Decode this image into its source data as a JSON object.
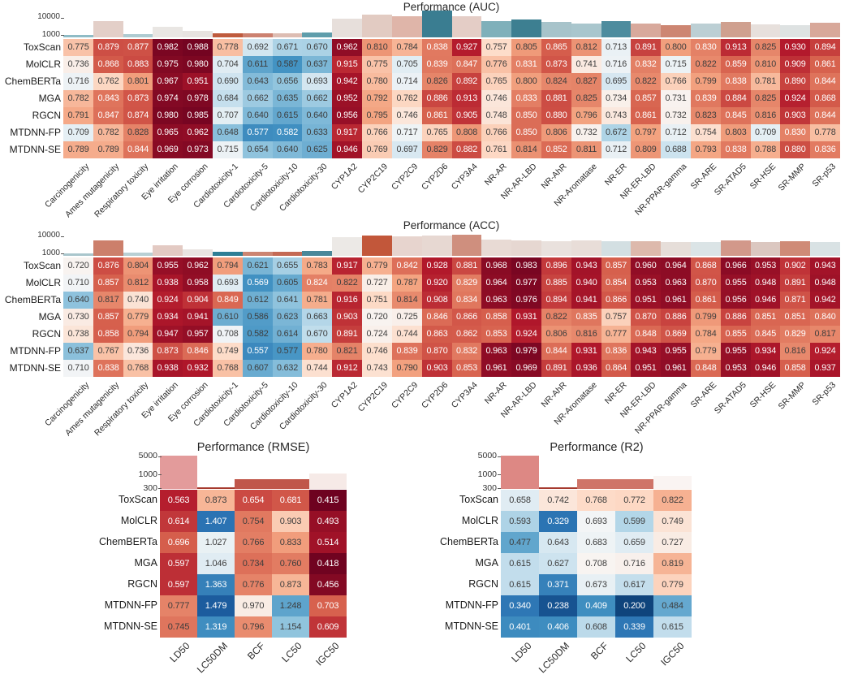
{
  "page": {
    "background": "#ffffff"
  },
  "chart_data": [
    {
      "id": "auc",
      "type": "heatmap",
      "title": "Performance (AUC)",
      "rows": [
        "ToxScan",
        "MolCLR",
        "ChemBERTa",
        "MGA",
        "RGCN",
        "MTDNN-FP",
        "MTDNN-SE"
      ],
      "columns": [
        "Carcinogenicity",
        "Ames mutagenicity",
        "Respiratory toxicity",
        "Eye irritation",
        "Eye corrosion",
        "Cardiotoxicity-1",
        "Cardiotoxicity-5",
        "Cardiotoxicity-10",
        "Cardiotoxicity-30",
        "CYP1A2",
        "CYP2C19",
        "CYP2C9",
        "CYP2D6",
        "CYP3A4",
        "NR-AR",
        "NR-AR-LBD",
        "NR-AhR",
        "NR-Aromatase",
        "NR-ER",
        "NR-ER-LBD",
        "NR-PPAR-gamma",
        "SR-ARE",
        "SR-ATAD5",
        "SR-HSE",
        "SR-MMP",
        "SR-p53"
      ],
      "values": [
        [
          "0.775",
          "0.879",
          "0.877",
          "0.982",
          "0.988",
          "0.778",
          "0.692",
          "0.671",
          "0.670",
          "0.962",
          "0.810",
          "0.784",
          "0.838",
          "0.927",
          "0.757",
          "0.805",
          "0.865",
          "0.812",
          "0.713",
          "0.891",
          "0.800",
          "0.830",
          "0.913",
          "0.825",
          "0.930",
          "0.894"
        ],
        [
          "0.736",
          "0.868",
          "0.883",
          "0.975",
          "0.980",
          "0.704",
          "0.611",
          "0.587",
          "0.637",
          "0.915",
          "0.775",
          "0.705",
          "0.839",
          "0.847",
          "0.776",
          "0.831",
          "0.873",
          "0.741",
          "0.716",
          "0.832",
          "0.715",
          "0.822",
          "0.859",
          "0.810",
          "0.909",
          "0.861"
        ],
        [
          "0.716",
          "0.762",
          "0.801",
          "0.967",
          "0.951",
          "0.690",
          "0.643",
          "0.656",
          "0.693",
          "0.942",
          "0.780",
          "0.714",
          "0.826",
          "0.892",
          "0.765",
          "0.800",
          "0.824",
          "0.827",
          "0.695",
          "0.822",
          "0.766",
          "0.799",
          "0.838",
          "0.781",
          "0.890",
          "0.844"
        ],
        [
          "0.782",
          "0.843",
          "0.873",
          "0.974",
          "0.978",
          "0.684",
          "0.662",
          "0.635",
          "0.662",
          "0.952",
          "0.792",
          "0.762",
          "0.886",
          "0.913",
          "0.746",
          "0.833",
          "0.881",
          "0.825",
          "0.734",
          "0.857",
          "0.731",
          "0.839",
          "0.884",
          "0.825",
          "0.924",
          "0.868"
        ],
        [
          "0.791",
          "0.847",
          "0.874",
          "0.980",
          "0.985",
          "0.707",
          "0.640",
          "0.615",
          "0.640",
          "0.956",
          "0.795",
          "0.746",
          "0.861",
          "0.905",
          "0.748",
          "0.850",
          "0.880",
          "0.796",
          "0.743",
          "0.861",
          "0.732",
          "0.823",
          "0.845",
          "0.816",
          "0.903",
          "0.844"
        ],
        [
          "0.709",
          "0.782",
          "0.828",
          "0.965",
          "0.962",
          "0.648",
          "0.577",
          "0.582",
          "0.633",
          "0.917",
          "0.766",
          "0.717",
          "0.765",
          "0.808",
          "0.766",
          "0.850",
          "0.806",
          "0.732",
          "0.672",
          "0.797",
          "0.712",
          "0.754",
          "0.803",
          "0.709",
          "0.830",
          "0.778"
        ],
        [
          "0.789",
          "0.789",
          "0.844",
          "0.969",
          "0.973",
          "0.715",
          "0.654",
          "0.640",
          "0.625",
          "0.946",
          "0.769",
          "0.697",
          "0.829",
          "0.882",
          "0.761",
          "0.814",
          "0.852",
          "0.811",
          "0.712",
          "0.809",
          "0.688",
          "0.793",
          "0.838",
          "0.788",
          "0.880",
          "0.836"
        ]
      ],
      "top_bar_chart": {
        "type": "bar",
        "yaxis_scale": "log",
        "yticks": [
          "10000",
          "1000"
        ],
        "sizes": [
          1050,
          6200,
          1100,
          3000,
          1700,
          1300,
          1300,
          1250,
          1400,
          9000,
          15000,
          12500,
          26000,
          12000,
          6500,
          7500,
          5500,
          4800,
          6000,
          4800,
          3800,
          4600,
          5800,
          4200,
          3600,
          5000
        ],
        "colors": [
          "#8fbcc6",
          "#e3cfc8",
          "#aecbd1",
          "#e9e6e3",
          "#e7e3e0",
          "#bf5b3d",
          "#cc8170",
          "#ddbdb3",
          "#5f9dab",
          "#e7dfdb",
          "#e2cbc2",
          "#dfb5a9",
          "#3a7d91",
          "#e4cdc6",
          "#7fb0ba",
          "#3d7f91",
          "#a7c3ca",
          "#a9c6cd",
          "#4d8c9e",
          "#d8a99c",
          "#cd8672",
          "#bccfd4",
          "#cfa08f",
          "#e7e0dc",
          "#dee2e2",
          "#d8a89a"
        ]
      },
      "colormap": {
        "palette": "RdBu_r",
        "vmin": 0.45,
        "vmax": 1.0,
        "invert": false
      },
      "grid": false,
      "legend_position": "none"
    },
    {
      "id": "acc",
      "type": "heatmap",
      "title": "Performance (ACC)",
      "rows": [
        "ToxScan",
        "MolCLR",
        "ChemBERTa",
        "MGA",
        "RGCN",
        "MTDNN-FP",
        "MTDNN-SE"
      ],
      "columns": [
        "Carcinogenicity",
        "Ames mutagenicity",
        "Respiratory toxicity",
        "Eye irritation",
        "Eye corrosion",
        "Cardiotoxicity-1",
        "Cardiotoxicity-5",
        "Cardiotoxicity-10",
        "Cardiotoxicity-30",
        "CYP1A2",
        "CYP2C19",
        "CYP2C9",
        "CYP2D6",
        "CYP3A4",
        "NR-AR",
        "NR-AR-LBD",
        "NR-AhR",
        "NR-Aromatase",
        "NR-ER",
        "NR-ER-LBD",
        "NR-PPAR-gamma",
        "SR-ARE",
        "SR-ATAD5",
        "SR-HSE",
        "SR-MMP",
        "SR-p53"
      ],
      "values": [
        [
          "0.720",
          "0.876",
          "0.804",
          "0.955",
          "0.962",
          "0.794",
          "0.621",
          "0.655",
          "0.783",
          "0.917",
          "0.779",
          "0.842",
          "0.928",
          "0.881",
          "0.968",
          "0.983",
          "0.896",
          "0.943",
          "0.857",
          "0.960",
          "0.964",
          "0.868",
          "0.966",
          "0.953",
          "0.902",
          "0.943"
        ],
        [
          "0.710",
          "0.857",
          "0.812",
          "0.938",
          "0.958",
          "0.693",
          "0.569",
          "0.605",
          "0.824",
          "0.822",
          "0.727",
          "0.787",
          "0.920",
          "0.829",
          "0.964",
          "0.977",
          "0.885",
          "0.940",
          "0.854",
          "0.953",
          "0.963",
          "0.870",
          "0.955",
          "0.948",
          "0.891",
          "0.948"
        ],
        [
          "0.640",
          "0.817",
          "0.740",
          "0.924",
          "0.904",
          "0.849",
          "0.612",
          "0.641",
          "0.781",
          "0.916",
          "0.751",
          "0.814",
          "0.908",
          "0.834",
          "0.963",
          "0.976",
          "0.894",
          "0.941",
          "0.866",
          "0.951",
          "0.961",
          "0.861",
          "0.956",
          "0.946",
          "0.871",
          "0.942"
        ],
        [
          "0.730",
          "0.857",
          "0.779",
          "0.934",
          "0.941",
          "0.610",
          "0.586",
          "0.623",
          "0.663",
          "0.903",
          "0.720",
          "0.725",
          "0.846",
          "0.866",
          "0.858",
          "0.931",
          "0.822",
          "0.835",
          "0.757",
          "0.870",
          "0.886",
          "0.799",
          "0.886",
          "0.851",
          "0.851",
          "0.840"
        ],
        [
          "0.738",
          "0.858",
          "0.794",
          "0.947",
          "0.957",
          "0.708",
          "0.582",
          "0.614",
          "0.670",
          "0.891",
          "0.724",
          "0.744",
          "0.863",
          "0.862",
          "0.853",
          "0.924",
          "0.806",
          "0.816",
          "0.777",
          "0.848",
          "0.869",
          "0.784",
          "0.855",
          "0.845",
          "0.829",
          "0.817"
        ],
        [
          "0.637",
          "0.767",
          "0.736",
          "0.873",
          "0.846",
          "0.749",
          "0.557",
          "0.577",
          "0.780",
          "0.821",
          "0.746",
          "0.839",
          "0.870",
          "0.832",
          "0.963",
          "0.979",
          "0.844",
          "0.931",
          "0.836",
          "0.943",
          "0.955",
          "0.779",
          "0.955",
          "0.934",
          "0.816",
          "0.924"
        ],
        [
          "0.710",
          "0.838",
          "0.768",
          "0.938",
          "0.932",
          "0.768",
          "0.607",
          "0.632",
          "0.744",
          "0.912",
          "0.743",
          "0.790",
          "0.903",
          "0.853",
          "0.961",
          "0.969",
          "0.891",
          "0.936",
          "0.864",
          "0.951",
          "0.961",
          "0.848",
          "0.953",
          "0.946",
          "0.858",
          "0.937"
        ]
      ],
      "top_bar_chart": {
        "type": "bar",
        "yaxis_scale": "log",
        "yticks": [
          "10000",
          "1000"
        ],
        "sizes": [
          1050,
          5500,
          1100,
          3000,
          1700,
          1300,
          1300,
          1300,
          1400,
          9000,
          11000,
          10000,
          10500,
          11500,
          6000,
          5800,
          5000,
          5500,
          5200,
          5000,
          4500,
          4800,
          5500,
          4800,
          5200,
          4800
        ],
        "colors": [
          "#a9c6cc",
          "#cc7f6b",
          "#b9d0d4",
          "#e3cac3",
          "#e9e4e1",
          "#2f7e95",
          "#cc8572",
          "#c46a55",
          "#4a8799",
          "#ece9e6",
          "#c2573a",
          "#e7d4ce",
          "#e7d8d2",
          "#cf8f7e",
          "#e8dad4",
          "#e6d7d1",
          "#e9e1dd",
          "#e8ddd8",
          "#d3dfe2",
          "#ddb9ac",
          "#e6ded9",
          "#dbe4e6",
          "#d2988a",
          "#dbc7c0",
          "#cf8b77",
          "#d9e2e4"
        ]
      },
      "colormap": {
        "palette": "RdBu_r",
        "vmin": 0.43,
        "vmax": 1.0,
        "invert": false
      },
      "grid": false,
      "legend_position": "none"
    },
    {
      "id": "rmse",
      "type": "heatmap",
      "title": "Performance (RMSE)",
      "rows": [
        "ToxScan",
        "MolCLR",
        "ChemBERTa",
        "MGA",
        "RGCN",
        "MTDNN-FP",
        "MTDNN-SE"
      ],
      "columns": [
        "LD50",
        "LC50DM",
        "BCF",
        "LC50",
        "IGC50"
      ],
      "values": [
        [
          "0.563",
          "0.873",
          "0.654",
          "0.681",
          "0.415"
        ],
        [
          "0.614",
          "1.407",
          "0.754",
          "0.903",
          "0.493"
        ],
        [
          "0.696",
          "1.027",
          "0.766",
          "0.833",
          "0.514"
        ],
        [
          "0.597",
          "1.046",
          "0.734",
          "0.760",
          "0.418"
        ],
        [
          "0.597",
          "1.363",
          "0.776",
          "0.873",
          "0.456"
        ],
        [
          "0.777",
          "1.479",
          "0.970",
          "1.248",
          "0.703"
        ],
        [
          "0.745",
          "1.319",
          "0.796",
          "1.154",
          "0.609"
        ]
      ],
      "top_bar_chart": {
        "type": "bar",
        "yaxis_scale": "log",
        "yticks": [
          "5000",
          "1000",
          "300"
        ],
        "sizes": [
          5200,
          330,
          650,
          680,
          1100
        ],
        "colors": [
          "#e39b9b",
          "#a63a2e",
          "#c0564a",
          "#c0564a",
          "#f6eae7"
        ]
      },
      "colormap": {
        "palette": "RdBu_r",
        "vmin": 0.4,
        "vmax": 1.6,
        "invert": true
      },
      "grid": false,
      "legend_position": "none"
    },
    {
      "id": "r2",
      "type": "heatmap",
      "title": "Performance (R2)",
      "rows": [
        "ToxScan",
        "MolCLR",
        "ChemBERTa",
        "MGA",
        "RGCN",
        "MTDNN-FP",
        "MTDNN-SE"
      ],
      "columns": [
        "LD50",
        "LC50DM",
        "BCF",
        "LC50",
        "IGC50"
      ],
      "values": [
        [
          "0.658",
          "0.742",
          "0.768",
          "0.772",
          "0.822"
        ],
        [
          "0.593",
          "0.329",
          "0.693",
          "0.599",
          "0.749"
        ],
        [
          "0.477",
          "0.643",
          "0.683",
          "0.659",
          "0.727"
        ],
        [
          "0.615",
          "0.627",
          "0.708",
          "0.716",
          "0.819"
        ],
        [
          "0.615",
          "0.371",
          "0.673",
          "0.617",
          "0.779"
        ],
        [
          "0.340",
          "0.238",
          "0.409",
          "0.200",
          "0.484"
        ],
        [
          "0.401",
          "0.406",
          "0.608",
          "0.339",
          "0.615"
        ]
      ],
      "top_bar_chart": {
        "type": "bar",
        "yaxis_scale": "log",
        "yticks": [
          "5000",
          "1000",
          "300"
        ],
        "sizes": [
          5200,
          330,
          650,
          680,
          900
        ],
        "colors": [
          "#dd8884",
          "#a63a2e",
          "#cf7468",
          "#cf7468",
          "#faf4f2"
        ]
      },
      "colormap": {
        "palette": "RdBu_r",
        "vmin": 0.15,
        "vmax": 1.25,
        "invert": false
      },
      "grid": false,
      "legend_position": "none"
    }
  ]
}
